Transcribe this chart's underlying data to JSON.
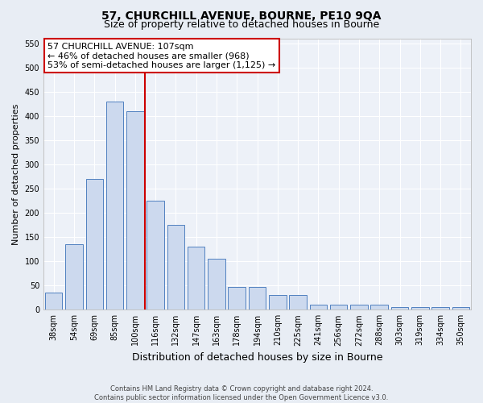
{
  "title": "57, CHURCHILL AVENUE, BOURNE, PE10 9QA",
  "subtitle": "Size of property relative to detached houses in Bourne",
  "xlabel": "Distribution of detached houses by size in Bourne",
  "ylabel": "Number of detached properties",
  "footer_line1": "Contains HM Land Registry data © Crown copyright and database right 2024.",
  "footer_line2": "Contains public sector information licensed under the Open Government Licence v3.0.",
  "bar_labels": [
    "38sqm",
    "54sqm",
    "69sqm",
    "85sqm",
    "100sqm",
    "116sqm",
    "132sqm",
    "147sqm",
    "163sqm",
    "178sqm",
    "194sqm",
    "210sqm",
    "225sqm",
    "241sqm",
    "256sqm",
    "272sqm",
    "288sqm",
    "303sqm",
    "319sqm",
    "334sqm",
    "350sqm"
  ],
  "bar_values": [
    35,
    135,
    270,
    430,
    410,
    225,
    175,
    130,
    105,
    47,
    47,
    30,
    30,
    10,
    10,
    10,
    10,
    5,
    5,
    5,
    5
  ],
  "bar_color": "#ccd9ee",
  "bar_edge_color": "#5080c0",
  "property_line_color": "#cc0000",
  "annotation_line1": "57 CHURCHILL AVENUE: 107sqm",
  "annotation_line2": "← 46% of detached houses are smaller (968)",
  "annotation_line3": "53% of semi-detached houses are larger (1,125) →",
  "annotation_box_color": "#cc0000",
  "ylim": [
    0,
    560
  ],
  "yticks": [
    0,
    50,
    100,
    150,
    200,
    250,
    300,
    350,
    400,
    450,
    500,
    550
  ],
  "bg_color": "#e8edf4",
  "plot_bg_color": "#edf1f8",
  "grid_color": "#ffffff",
  "title_fontsize": 10,
  "subtitle_fontsize": 9,
  "ylabel_fontsize": 8,
  "xlabel_fontsize": 9,
  "tick_fontsize": 7,
  "footer_fontsize": 6,
  "annotation_fontsize": 8
}
